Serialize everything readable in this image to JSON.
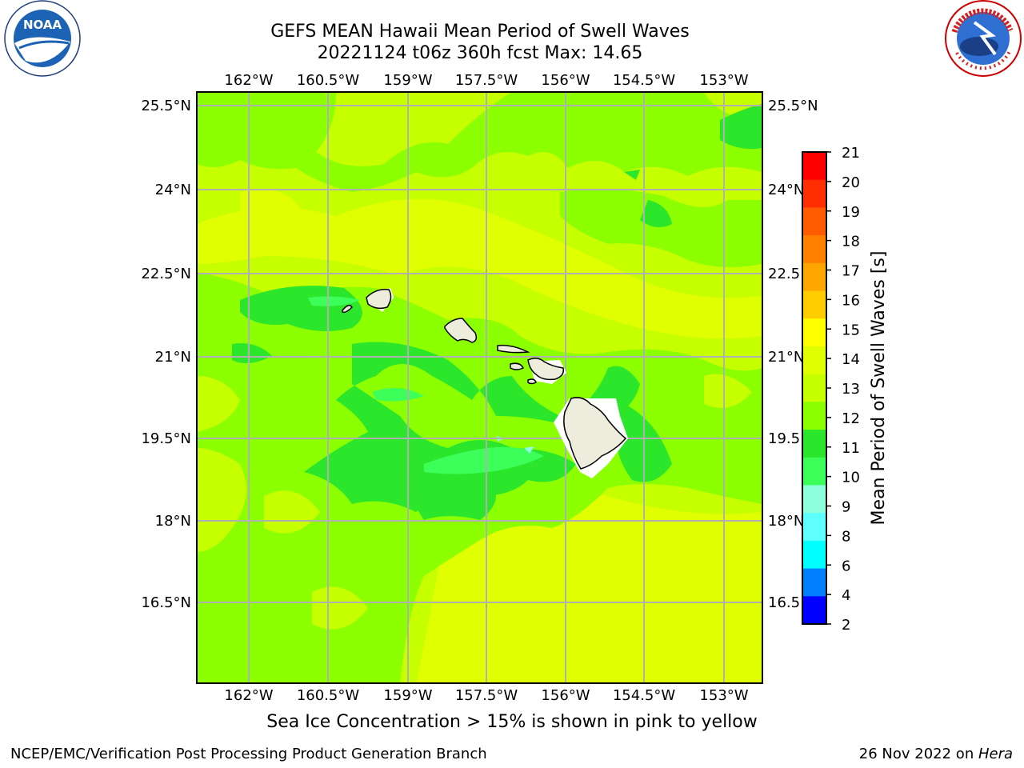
{
  "title": {
    "line1": "GEFS MEAN Hawaii Mean Period of Swell Waves",
    "line2": "20221124 t06z 360h fcst   Max: 14.65"
  },
  "logos": {
    "left": {
      "icon": "noaa-logo",
      "text": "NOAA"
    },
    "right": {
      "icon": "nws-logo",
      "text": "NATIONAL WEATHER SERVICE"
    }
  },
  "map": {
    "lon_labels": [
      "162°W",
      "160.5°W",
      "159°W",
      "157.5°W",
      "156°W",
      "154.5°W",
      "153°W"
    ],
    "lat_labels_left": [
      "25.5°N",
      "24°N",
      "22.5°N",
      "21°N",
      "19.5°N",
      "18°N",
      "16.5°N"
    ],
    "lat_labels_right": [
      "25.5°N",
      "24°N",
      "22.5",
      "21°N",
      "19.5",
      "18°N",
      "16.5"
    ],
    "gridline_color": "#b0b0b0",
    "land_color": "#eeecdc"
  },
  "colorbar": {
    "label": "Mean Period of Swell Waves [s]",
    "ticks": [
      "21",
      "20",
      "19",
      "18",
      "17",
      "16",
      "15",
      "14",
      "13",
      "12",
      "11",
      "10",
      "9",
      "8",
      "6",
      "4",
      "2"
    ],
    "colors": [
      "#ff0000",
      "#ff2e00",
      "#ff5c00",
      "#ff8000",
      "#ffa500",
      "#ffcc00",
      "#ffff00",
      "#e0ff00",
      "#c6ff00",
      "#8cff00",
      "#2be62b",
      "#3cff5a",
      "#8cffdc",
      "#5effff",
      "#00ffff",
      "#0080ff",
      "#0000ff"
    ]
  },
  "footer": {
    "note": "Sea Ice Concentration > 15% is shown in pink to yellow",
    "left": "NCEP/EMC/Verification Post Processing Product Generation Branch",
    "right_date": "26 Nov 2022 on ",
    "right_machine": "Hera"
  }
}
